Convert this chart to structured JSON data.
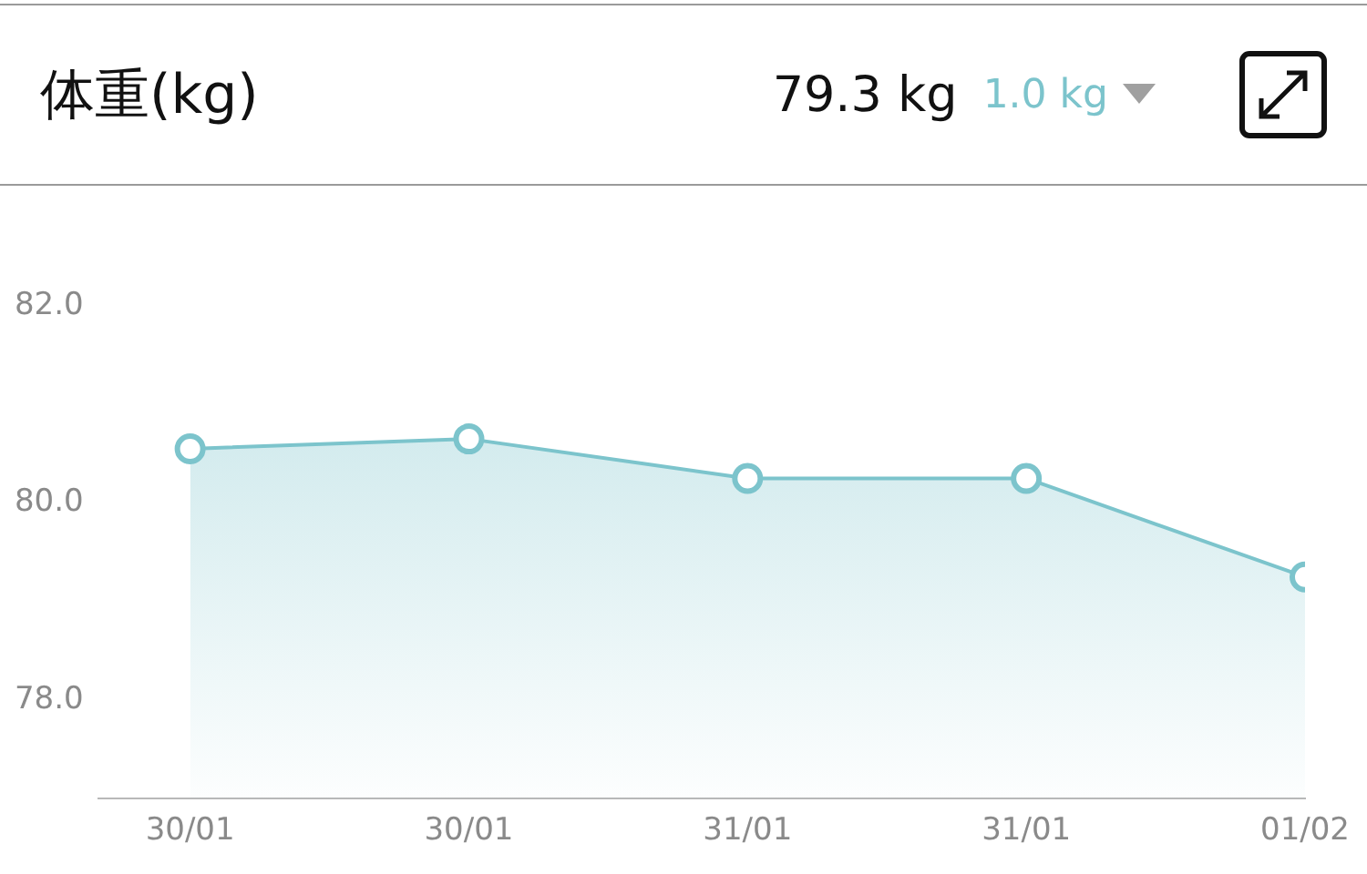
{
  "chart_data": {
    "type": "area",
    "title": "体重(kg)",
    "annotations": [
      "79.3 kg",
      "1.0 kg"
    ],
    "categories": [
      "30/01",
      "30/01",
      "31/01",
      "31/01",
      "01/02"
    ],
    "series": [
      {
        "color": "#7cc4cc",
        "values": [
          80.55,
          80.65,
          80.25,
          80.25,
          79.25
        ]
      }
    ],
    "ylim": [
      77,
      82
    ],
    "yticks": [
      {
        "value": 78,
        "label": "78.0"
      },
      {
        "value": 80,
        "label": "80.0"
      },
      {
        "value": 82,
        "label": "82.0"
      }
    ],
    "marker": "circle",
    "grid": false,
    "legend": false
  }
}
